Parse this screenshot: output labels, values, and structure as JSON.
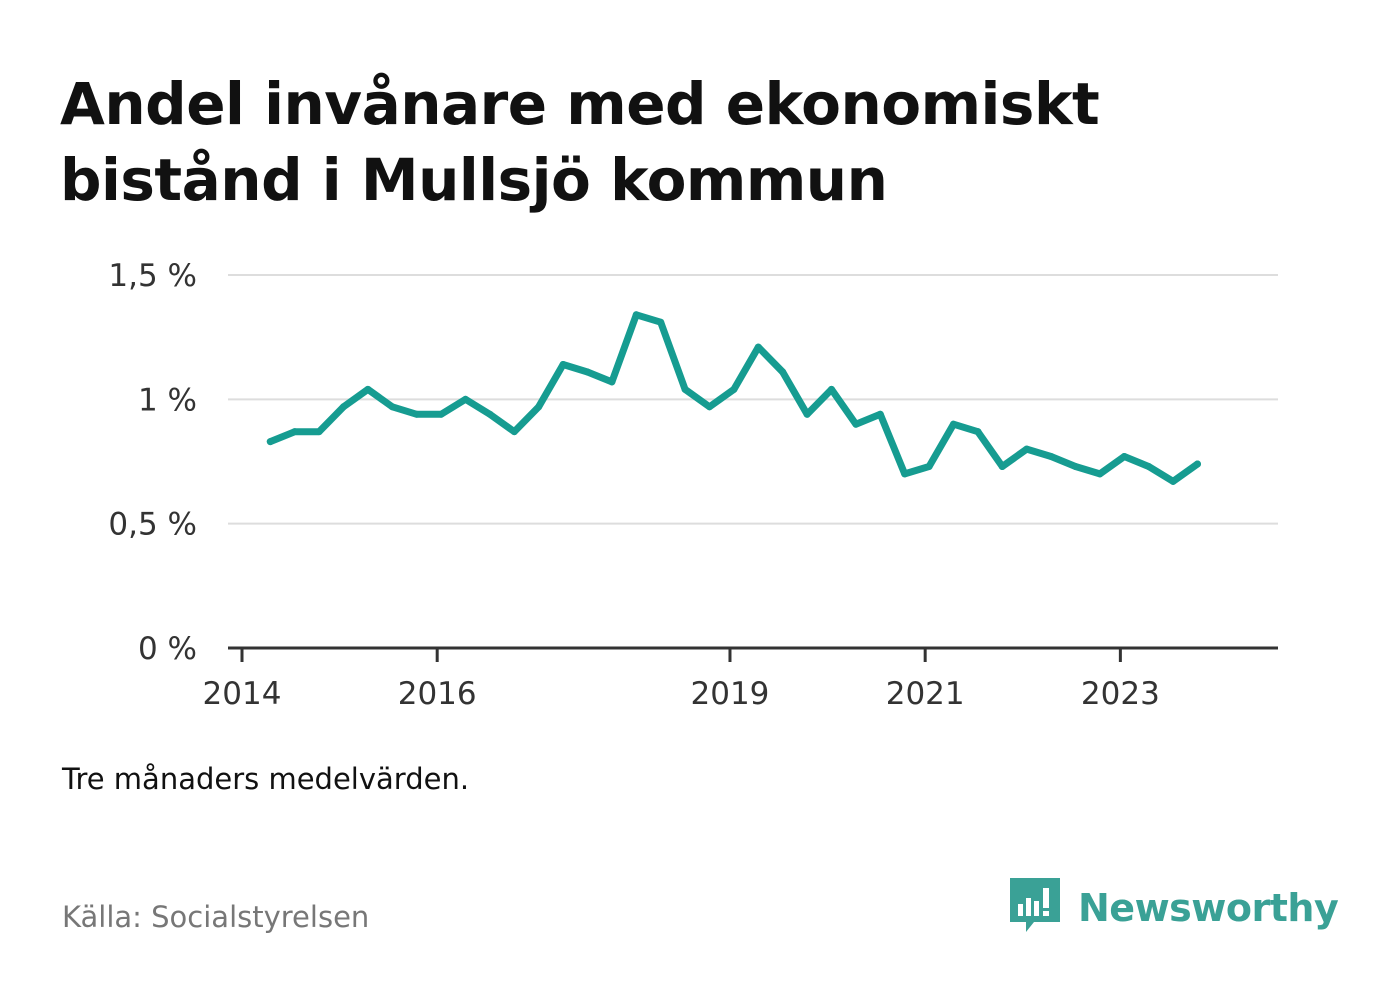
{
  "title": "Andel invånare med ekonomiskt bistånd i Mullsjö kommun",
  "note": "Tre månaders medelvärden.",
  "source": "Källa: Socialstyrelsen",
  "brand": {
    "name": "Newsworthy",
    "icon": "newsworthy-logo-icon",
    "color": "#3aa196"
  },
  "colors": {
    "line": "#169c91",
    "grid": "#dddddd",
    "axis": "#333333"
  },
  "chart_data": {
    "type": "line",
    "title": "Andel invånare med ekonomiskt bistånd i Mullsjö kommun",
    "xlabel": "",
    "ylabel": "",
    "ylim": [
      0,
      1.5
    ],
    "xlim": [
      2014,
      2024.4
    ],
    "yticks": [
      {
        "value": 0,
        "label": "0 %"
      },
      {
        "value": 0.5,
        "label": "0,5 %"
      },
      {
        "value": 1,
        "label": "1 %"
      },
      {
        "value": 1.5,
        "label": "1,5 %"
      }
    ],
    "xticks": [
      {
        "value": 2014,
        "label": "2014"
      },
      {
        "value": 2016,
        "label": "2016"
      },
      {
        "value": 2019,
        "label": "2019"
      },
      {
        "value": 2021,
        "label": "2021"
      },
      {
        "value": 2023,
        "label": "2023"
      }
    ],
    "series": [
      {
        "name": "Andel invånare med ekonomiskt bistånd",
        "x": [
          2014.29,
          2014.54,
          2014.79,
          2015.04,
          2015.29,
          2015.54,
          2015.79,
          2016.04,
          2016.29,
          2016.54,
          2016.79,
          2017.04,
          2017.29,
          2017.54,
          2017.79,
          2018.04,
          2018.29,
          2018.54,
          2018.79,
          2019.04,
          2019.29,
          2019.54,
          2019.79,
          2020.04,
          2020.29,
          2020.54,
          2020.79,
          2021.04,
          2021.29,
          2021.54,
          2021.79,
          2022.04,
          2022.29,
          2022.54,
          2022.79,
          2023.04,
          2023.29,
          2023.54,
          2023.79
        ],
        "values": [
          0.83,
          0.87,
          0.87,
          0.97,
          1.04,
          0.97,
          0.94,
          0.94,
          1.0,
          0.94,
          0.87,
          0.97,
          1.14,
          1.11,
          1.07,
          1.34,
          1.31,
          1.04,
          0.97,
          1.04,
          1.21,
          1.11,
          0.94,
          1.04,
          0.9,
          0.94,
          0.7,
          0.73,
          0.9,
          0.87,
          0.73,
          0.8,
          0.77,
          0.73,
          0.7,
          0.77,
          0.73,
          0.67,
          0.74
        ]
      }
    ]
  }
}
